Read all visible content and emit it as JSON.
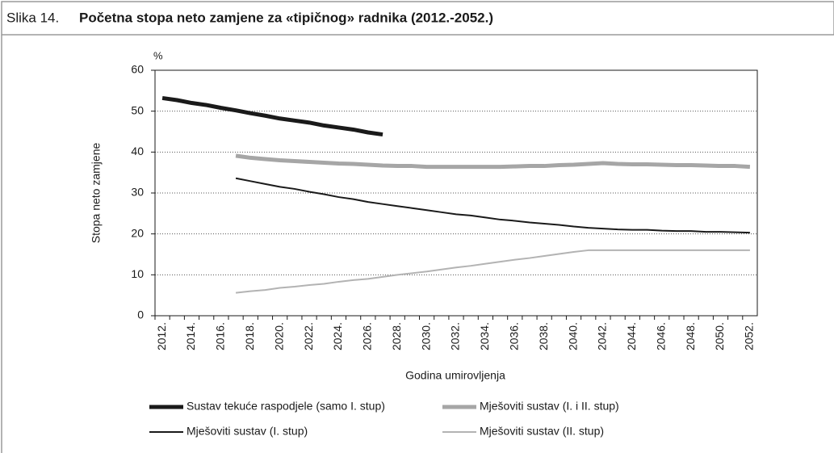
{
  "chart_data": {
    "type": "line",
    "label": "Slika 14.",
    "title": "Početna stopa neto zamjene za «tipičnog» radnika (2012.-2052.)",
    "unit": "%",
    "ylabel": "Stopa neto zamjene",
    "xlabel": "Godina umirovljenja",
    "categories": [
      "2012.",
      null,
      "2014.",
      null,
      "2016.",
      null,
      "2018.",
      null,
      "2020.",
      null,
      "2022.",
      null,
      "2024.",
      null,
      "2026.",
      null,
      "2028.",
      null,
      "2030.",
      null,
      "2032.",
      null,
      "2034.",
      null,
      "2036.",
      null,
      "2038.",
      null,
      "2040.",
      null,
      "2042.",
      null,
      "2044.",
      null,
      "2046.",
      null,
      "2048.",
      null,
      "2050.",
      null,
      "2052."
    ],
    "ylim": [
      0,
      60
    ],
    "yticks": [
      0,
      10,
      20,
      30,
      40,
      50,
      60
    ],
    "grid": true,
    "legend": "bottom",
    "series": [
      {
        "name": "Sustav tekuće raspodjele (samo I. stup)",
        "color": "#1a1a1a",
        "line_width": 5,
        "values": [
          53.2,
          52.7,
          52.0,
          51.5,
          50.8,
          50.2,
          49.5,
          48.9,
          48.2,
          47.7,
          47.2,
          46.5,
          46.0,
          45.5,
          44.8,
          44.3,
          null,
          null,
          null,
          null,
          null,
          null,
          null,
          null,
          null,
          null,
          null,
          null,
          null,
          null,
          null,
          null,
          null,
          null,
          null,
          null,
          null,
          null,
          null,
          null,
          null
        ]
      },
      {
        "name": "Mješoviti sustav (I. i II. stup)",
        "color": "#a6a6a6",
        "line_width": 5,
        "values": [
          null,
          null,
          null,
          null,
          null,
          39.1,
          38.6,
          38.3,
          38.0,
          37.8,
          37.6,
          37.4,
          37.2,
          37.1,
          36.9,
          36.7,
          36.6,
          36.6,
          36.4,
          36.4,
          36.4,
          36.4,
          36.4,
          36.4,
          36.5,
          36.6,
          36.6,
          36.8,
          36.9,
          37.1,
          37.3,
          37.1,
          37.0,
          37.0,
          36.9,
          36.8,
          36.8,
          36.7,
          36.6,
          36.6,
          36.4
        ]
      },
      {
        "name": "Mješoviti sustav (I. stup)",
        "color": "#1a1a1a",
        "line_width": 2,
        "values": [
          null,
          null,
          null,
          null,
          null,
          33.6,
          32.9,
          32.2,
          31.5,
          31.0,
          30.3,
          29.7,
          29.0,
          28.5,
          27.8,
          27.3,
          26.8,
          26.3,
          25.8,
          25.3,
          24.8,
          24.5,
          24.0,
          23.5,
          23.2,
          22.8,
          22.5,
          22.2,
          21.8,
          21.5,
          21.3,
          21.1,
          21.0,
          21.0,
          20.8,
          20.7,
          20.7,
          20.5,
          20.5,
          20.4,
          20.3
        ]
      },
      {
        "name": "Mješoviti sustav (II. stup)",
        "color": "#b3b3b3",
        "line_width": 2,
        "values": [
          null,
          null,
          null,
          null,
          null,
          5.6,
          6.0,
          6.3,
          6.8,
          7.1,
          7.5,
          7.8,
          8.3,
          8.7,
          9.0,
          9.5,
          10.0,
          10.4,
          10.8,
          11.3,
          11.8,
          12.2,
          12.7,
          13.2,
          13.7,
          14.1,
          14.6,
          15.1,
          15.6,
          16.0,
          16.0,
          16.0,
          16.0,
          16.0,
          16.0,
          16.0,
          16.0,
          16.0,
          16.0,
          16.0,
          16.0
        ]
      }
    ]
  }
}
